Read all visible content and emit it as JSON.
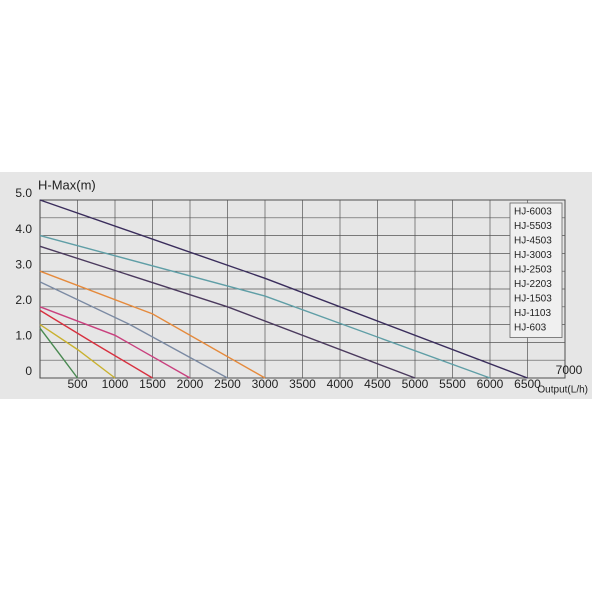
{
  "chart_data": {
    "type": "line",
    "title": "H-Max(m)",
    "x_label": "Output(L/h)",
    "xlim": [
      0,
      7000
    ],
    "xticks": [
      500,
      1000,
      1500,
      2000,
      2500,
      3000,
      3500,
      4000,
      4500,
      5000,
      5500,
      6000,
      6500,
      7000
    ],
    "ylim": [
      0,
      5
    ],
    "yticks": [
      0,
      {
        "value": 1,
        "label": "1.0"
      },
      {
        "value": 2,
        "label": "2.0"
      },
      {
        "value": 3,
        "label": "3.0"
      },
      {
        "value": 4,
        "label": "4.0"
      },
      {
        "value": 5,
        "label": "5.0"
      }
    ],
    "y_minor_grid": [
      0.5,
      1.5,
      2.5,
      3.5,
      4.5
    ],
    "grid": true,
    "legend": "top-right",
    "series": [
      {
        "name": "HJ-6003",
        "color": "#3a2d5c",
        "x": [
          0,
          3000,
          6500
        ],
        "values": [
          5.0,
          2.8,
          0
        ]
      },
      {
        "name": "HJ-5503",
        "color": "#5f9ea6",
        "x": [
          0,
          3000,
          6000
        ],
        "values": [
          4.0,
          2.3,
          0
        ]
      },
      {
        "name": "HJ-4503",
        "color": "#4b3a5e",
        "x": [
          0,
          2500,
          5000
        ],
        "values": [
          3.7,
          2.0,
          0
        ]
      },
      {
        "name": "HJ-3003",
        "color": "#e58a3c",
        "x": [
          0,
          1500,
          3000
        ],
        "values": [
          3.0,
          1.8,
          0
        ]
      },
      {
        "name": "HJ-2503",
        "color": "#7b8aa3",
        "x": [
          0,
          1200,
          2500
        ],
        "values": [
          2.7,
          1.5,
          0
        ]
      },
      {
        "name": "HJ-2203",
        "color": "#c9407e",
        "x": [
          0,
          1000,
          2000
        ],
        "values": [
          2.0,
          1.2,
          0
        ]
      },
      {
        "name": "HJ-1503",
        "color": "#d8303f",
        "x": [
          0,
          700,
          1500
        ],
        "values": [
          1.9,
          1.0,
          0
        ]
      },
      {
        "name": "HJ-1103",
        "color": "#c9b12f",
        "x": [
          0,
          500,
          1000
        ],
        "values": [
          1.5,
          0.8,
          0
        ]
      },
      {
        "name": "HJ-603",
        "color": "#4a8a52",
        "x": [
          0,
          250,
          500
        ],
        "values": [
          1.4,
          0.7,
          0
        ]
      }
    ]
  }
}
